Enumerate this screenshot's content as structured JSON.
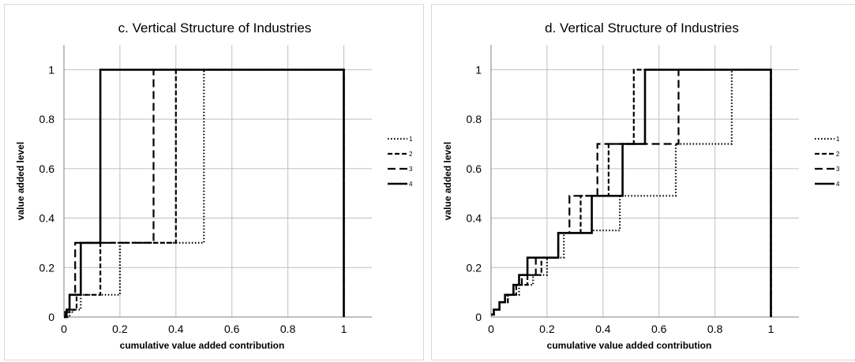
{
  "chart_data": [
    {
      "type": "line",
      "title": "c. Vertical Structure of Industries",
      "xlabel": "cumulative value added contribution",
      "ylabel": "value added level",
      "xlim": [
        0,
        1.1
      ],
      "ylim": [
        0,
        1.1
      ],
      "x_ticks": [
        "0",
        "0.2",
        "0.4",
        "0.6",
        "0.8",
        "1"
      ],
      "y_ticks": [
        "0",
        "0.2",
        "0.4",
        "0.6",
        "0.8",
        "1"
      ],
      "grid": true,
      "legend_position": "right",
      "series": [
        {
          "name": "1",
          "style": "dotted",
          "x": [
            0,
            0.02,
            0.02,
            0.035,
            0.035,
            0.06,
            0.06,
            0.2,
            0.2,
            0.5,
            0.5,
            1,
            1
          ],
          "y": [
            0,
            0,
            0.02,
            0.02,
            0.03,
            0.03,
            0.09,
            0.09,
            0.3,
            0.3,
            1,
            1,
            0
          ]
        },
        {
          "name": "2",
          "style": "dashed",
          "x": [
            0,
            0.01,
            0.01,
            0.02,
            0.02,
            0.045,
            0.045,
            0.13,
            0.13,
            0.4,
            0.4,
            1,
            1
          ],
          "y": [
            0,
            0,
            0.02,
            0.02,
            0.03,
            0.03,
            0.09,
            0.09,
            0.3,
            0.3,
            1,
            1,
            0
          ]
        },
        {
          "name": "3",
          "style": "longdash",
          "x": [
            0,
            0.01,
            0.01,
            0.02,
            0.02,
            0.04,
            0.04,
            0.32,
            0.32,
            1,
            1
          ],
          "y": [
            0,
            0,
            0.03,
            0.03,
            0.09,
            0.09,
            0.3,
            0.3,
            1,
            1,
            0
          ]
        },
        {
          "name": "4",
          "style": "solid",
          "x": [
            0,
            0.005,
            0.005,
            0.01,
            0.01,
            0.02,
            0.02,
            0.06,
            0.06,
            0.13,
            0.13,
            1,
            1
          ],
          "y": [
            0,
            0,
            0.02,
            0.02,
            0.03,
            0.03,
            0.09,
            0.09,
            0.3,
            0.3,
            1,
            1,
            0
          ]
        }
      ]
    },
    {
      "type": "line",
      "title": "d. Vertical Structure of Industries",
      "xlabel": "cumulative value added contribution",
      "ylabel": "value added level",
      "xlim": [
        0,
        1.1
      ],
      "ylim": [
        0,
        1.1
      ],
      "x_ticks": [
        "0",
        "0.2",
        "0.4",
        "0.6",
        "0.8",
        "1"
      ],
      "y_ticks": [
        "0",
        "0.2",
        "0.4",
        "0.6",
        "0.8",
        "1"
      ],
      "grid": true,
      "legend_position": "right",
      "series": [
        {
          "name": "1",
          "style": "dotted",
          "x": [
            0,
            0.01,
            0.01,
            0.03,
            0.03,
            0.06,
            0.06,
            0.1,
            0.1,
            0.15,
            0.15,
            0.2,
            0.2,
            0.26,
            0.26,
            0.36,
            0.36,
            0.46,
            0.46,
            0.66,
            0.66,
            0.86,
            0.86,
            1,
            1
          ],
          "y": [
            0.01,
            0.01,
            0.03,
            0.03,
            0.06,
            0.06,
            0.09,
            0.09,
            0.13,
            0.13,
            0.17,
            0.17,
            0.24,
            0.24,
            0.34,
            0.34,
            0.35,
            0.35,
            0.49,
            0.49,
            0.7,
            0.7,
            1,
            1,
            0
          ]
        },
        {
          "name": "2",
          "style": "dashed",
          "x": [
            0,
            0.01,
            0.01,
            0.03,
            0.03,
            0.06,
            0.06,
            0.09,
            0.09,
            0.13,
            0.13,
            0.18,
            0.18,
            0.24,
            0.24,
            0.32,
            0.32,
            0.42,
            0.42,
            0.51,
            0.51,
            0.76,
            0.76,
            1,
            1
          ],
          "y": [
            0.01,
            0.01,
            0.03,
            0.03,
            0.06,
            0.06,
            0.09,
            0.09,
            0.13,
            0.13,
            0.17,
            0.17,
            0.24,
            0.24,
            0.34,
            0.34,
            0.49,
            0.49,
            0.7,
            0.7,
            1,
            1,
            1,
            1,
            0
          ]
        },
        {
          "name": "3",
          "style": "longdash",
          "x": [
            0,
            0.01,
            0.01,
            0.03,
            0.03,
            0.05,
            0.05,
            0.08,
            0.08,
            0.11,
            0.11,
            0.16,
            0.16,
            0.24,
            0.24,
            0.28,
            0.28,
            0.38,
            0.38,
            0.67,
            0.67,
            1,
            1
          ],
          "y": [
            0.01,
            0.01,
            0.03,
            0.03,
            0.06,
            0.06,
            0.09,
            0.09,
            0.13,
            0.13,
            0.17,
            0.17,
            0.24,
            0.24,
            0.34,
            0.34,
            0.49,
            0.49,
            0.7,
            0.7,
            1,
            1,
            0
          ]
        },
        {
          "name": "4",
          "style": "solid",
          "x": [
            0,
            0.01,
            0.01,
            0.03,
            0.03,
            0.05,
            0.05,
            0.08,
            0.08,
            0.1,
            0.1,
            0.13,
            0.13,
            0.24,
            0.24,
            0.36,
            0.36,
            0.47,
            0.47,
            0.55,
            0.55,
            1,
            1
          ],
          "y": [
            0.01,
            0.01,
            0.03,
            0.03,
            0.06,
            0.06,
            0.09,
            0.09,
            0.13,
            0.13,
            0.17,
            0.17,
            0.24,
            0.24,
            0.34,
            0.34,
            0.49,
            0.49,
            0.7,
            0.7,
            1,
            1,
            0
          ]
        }
      ]
    }
  ]
}
